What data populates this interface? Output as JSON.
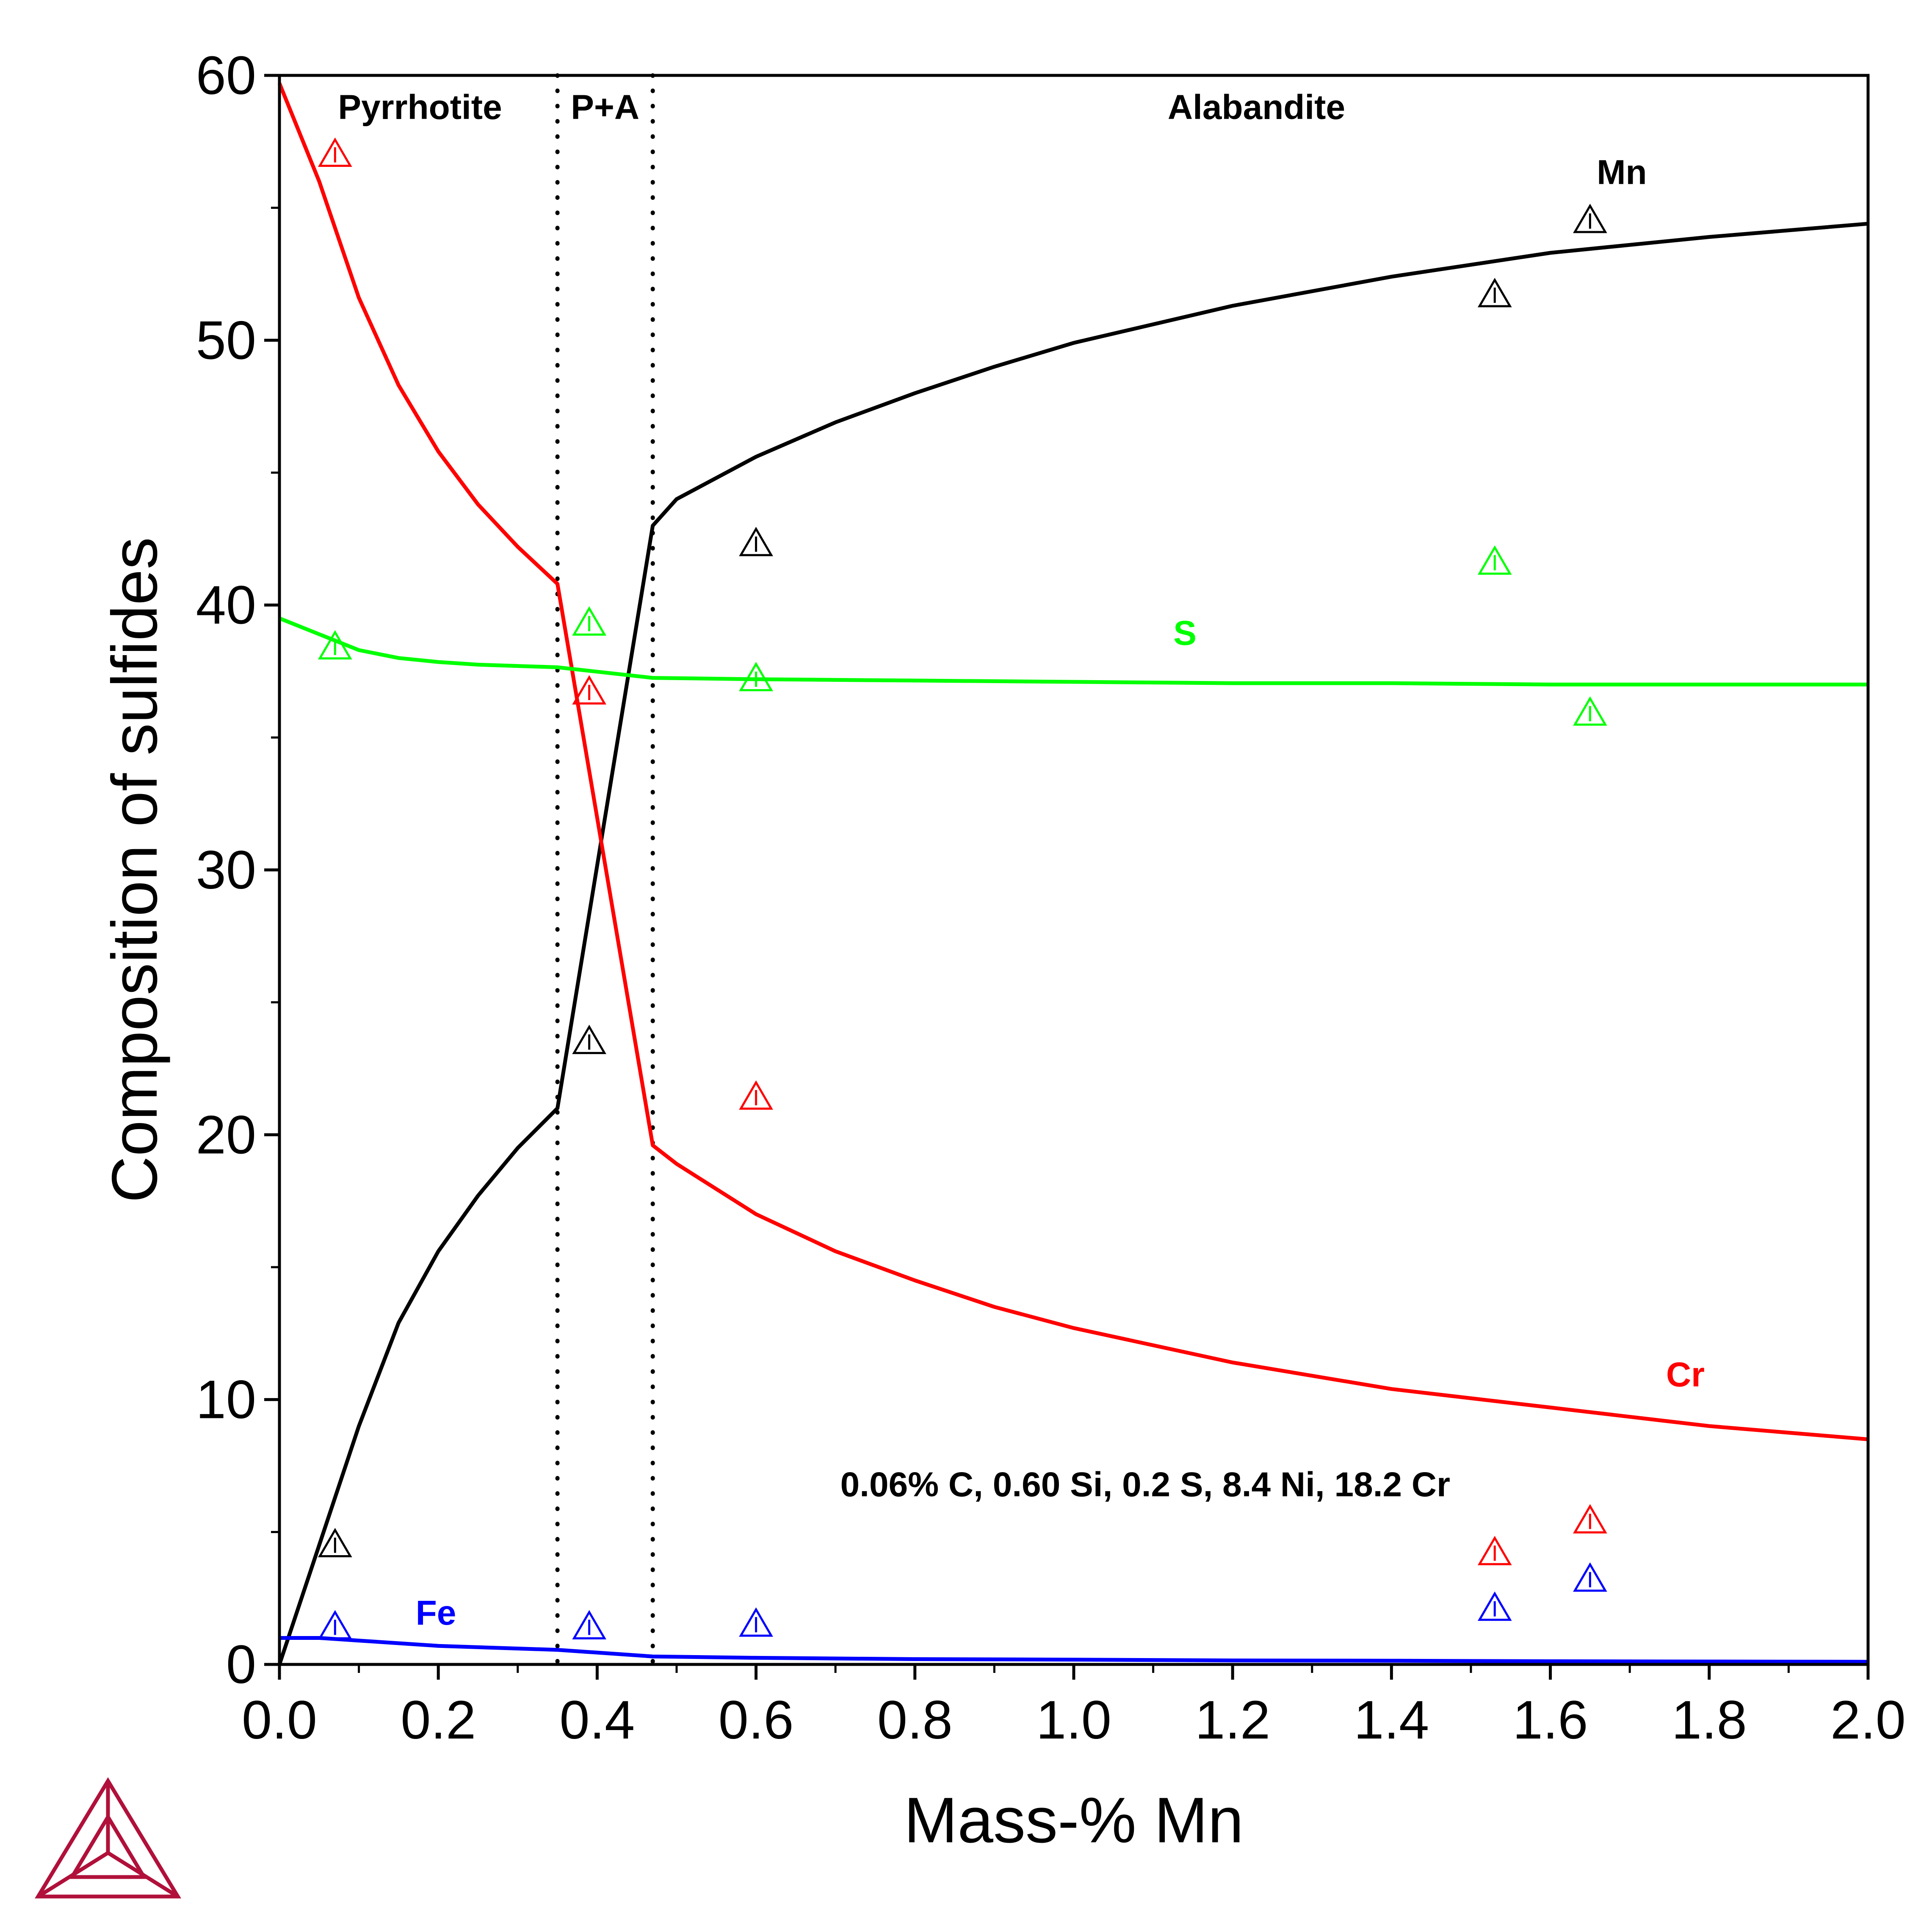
{
  "chart_data": {
    "type": "line",
    "xlabel": "Mass-% Mn",
    "ylabel": "Composition of sulfides",
    "xlim": [
      0,
      2.0
    ],
    "ylim": [
      0,
      60
    ],
    "x_ticks": [
      0,
      0.2,
      0.4,
      0.6,
      0.8,
      1.0,
      1.2,
      1.4,
      1.6,
      1.8,
      2.0
    ],
    "x_tick_labels": [
      "0.0",
      "0.2",
      "0.4",
      "0.6",
      "0.8",
      "1.0",
      "1.2",
      "1.4",
      "1.6",
      "1.8",
      "2.0"
    ],
    "y_ticks": [
      0,
      10,
      20,
      30,
      40,
      50,
      60
    ],
    "y_tick_labels": [
      "0",
      "10",
      "20",
      "30",
      "40",
      "50",
      "60"
    ],
    "grid": false,
    "phase_boundaries": [
      0.35,
      0.47
    ],
    "regions": [
      {
        "label": "Pyrrhotite",
        "x": 0.177,
        "y": 58.8
      },
      {
        "label": "P+A",
        "x": 0.41,
        "y": 58.8
      },
      {
        "label": "Alabandite",
        "x": 1.23,
        "y": 58.8
      }
    ],
    "annotation": {
      "text": "0.06% C, 0.60 Si, 0.2 S, 8.4 Ni, 18.2 Cr",
      "x": 1.09,
      "y": 6.8
    },
    "series": [
      {
        "name": "Mn",
        "color": "#000000",
        "label_pos": {
          "x": 1.69,
          "y": 55.9
        },
        "x": [
          0,
          0.05,
          0.1,
          0.15,
          0.2,
          0.25,
          0.3,
          0.35,
          0.47,
          0.5,
          0.6,
          0.7,
          0.8,
          0.9,
          1.0,
          1.2,
          1.4,
          1.6,
          1.8,
          2.0
        ],
        "y": [
          0,
          4.5,
          9.0,
          12.9,
          15.6,
          17.7,
          19.5,
          21.0,
          43.0,
          44.0,
          45.6,
          46.9,
          48.0,
          49.0,
          49.9,
          51.3,
          52.4,
          53.3,
          53.9,
          54.4
        ]
      },
      {
        "name": "Cr",
        "color": "#ff0000",
        "label_pos": {
          "x": 1.77,
          "y": 10.5
        },
        "x": [
          0,
          0.05,
          0.1,
          0.15,
          0.2,
          0.25,
          0.3,
          0.35,
          0.47,
          0.5,
          0.6,
          0.7,
          0.8,
          0.9,
          1.0,
          1.2,
          1.4,
          1.6,
          1.8,
          2.0
        ],
        "y": [
          59.7,
          56.0,
          51.6,
          48.3,
          45.8,
          43.8,
          42.2,
          40.8,
          19.6,
          18.9,
          17.0,
          15.6,
          14.5,
          13.5,
          12.7,
          11.4,
          10.4,
          9.7,
          9.0,
          8.5
        ]
      },
      {
        "name": "S",
        "color": "#00ff00",
        "label_pos": {
          "x": 1.14,
          "y": 38.5
        },
        "x": [
          0,
          0.05,
          0.1,
          0.15,
          0.2,
          0.25,
          0.3,
          0.35,
          0.47,
          0.6,
          0.8,
          1.0,
          1.2,
          1.4,
          1.6,
          1.8,
          2.0
        ],
        "y": [
          39.5,
          38.9,
          38.3,
          38.0,
          37.85,
          37.75,
          37.7,
          37.65,
          37.25,
          37.2,
          37.15,
          37.1,
          37.05,
          37.05,
          37.0,
          37.0,
          37.0
        ]
      },
      {
        "name": "Fe",
        "color": "#0000ff",
        "label_pos": {
          "x": 0.197,
          "y": 1.5
        },
        "x": [
          0,
          0.05,
          0.1,
          0.2,
          0.3,
          0.35,
          0.47,
          0.6,
          0.8,
          1.0,
          1.2,
          1.4,
          1.6,
          1.8,
          2.0
        ],
        "y": [
          1.0,
          1.0,
          0.9,
          0.7,
          0.6,
          0.55,
          0.3,
          0.25,
          0.2,
          0.18,
          0.15,
          0.14,
          0.12,
          0.11,
          0.1
        ]
      }
    ],
    "experimental_points": [
      {
        "series": "Mn",
        "color": "#000000",
        "x": [
          0.07,
          0.39,
          0.6,
          1.53,
          1.65
        ],
        "y": [
          4.5,
          23.5,
          42.3,
          51.7,
          54.5
        ]
      },
      {
        "series": "Cr",
        "color": "#ff0000",
        "x": [
          0.07,
          0.39,
          0.6,
          1.53,
          1.65
        ],
        "y": [
          57.0,
          36.7,
          21.4,
          4.2,
          5.4
        ]
      },
      {
        "series": "S",
        "color": "#00ff00",
        "x": [
          0.07,
          0.39,
          0.6,
          1.53,
          1.65
        ],
        "y": [
          38.4,
          39.3,
          37.2,
          41.6,
          35.9
        ]
      },
      {
        "series": "Fe",
        "color": "#0000ff",
        "x": [
          0.07,
          0.39,
          0.6,
          1.53,
          1.65
        ],
        "y": [
          1.4,
          1.4,
          1.5,
          2.1,
          3.2
        ]
      }
    ]
  },
  "logo": {
    "name": "thermo-calc-logo",
    "color": "#b0103a"
  }
}
